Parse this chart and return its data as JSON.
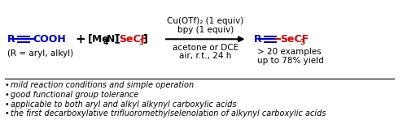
{
  "bg_color": "#ffffff",
  "blue_color": "#0000cc",
  "red_color": "#cc0000",
  "black_color": "#000000",
  "bullet_points": [
    "mild reaction conditions and simple operation",
    "good functional group tolerance",
    "applicable to both aryl and alkyl alkynyl carboxylic acids",
    "the first decarboxylative trifluoromethylselenolation of alkynyl carboxylic acids"
  ],
  "arrow_conditions_above": [
    "Cu(OTf)₂ (1 equiv)",
    "bpy (1 equiv)"
  ],
  "arrow_conditions_below": [
    "acetone or DCE",
    "air, r.t., 24 h"
  ],
  "r_label": "(R = aryl, alkyl)",
  "examples_line1": "> 20 examples",
  "examples_line2": "up to 78% yield"
}
